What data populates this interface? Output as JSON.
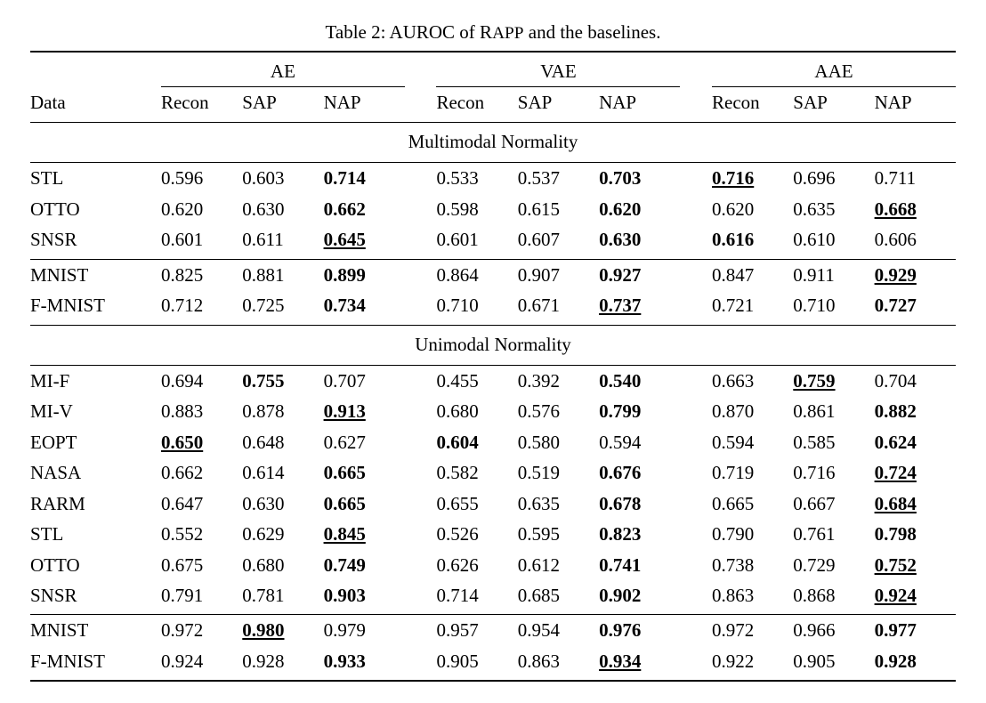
{
  "caption_prefix": "Table 2: AUROC of R",
  "caption_smallcaps": "APP",
  "caption_suffix": " and the baselines.",
  "groups": [
    "AE",
    "VAE",
    "AAE"
  ],
  "cols": [
    "Data",
    "Recon",
    "SAP",
    "NAP",
    "Recon",
    "SAP",
    "NAP",
    "Recon",
    "SAP",
    "NAP"
  ],
  "sections": [
    {
      "title": "Multimodal Normality",
      "blocks": [
        [
          {
            "label": "STL",
            "v": [
              {
                "t": "0.596"
              },
              {
                "t": "0.603"
              },
              {
                "t": "0.714",
                "b": true
              },
              {
                "t": "0.533"
              },
              {
                "t": "0.537"
              },
              {
                "t": "0.703",
                "b": true
              },
              {
                "t": "0.716",
                "b": true,
                "u": true
              },
              {
                "t": "0.696"
              },
              {
                "t": "0.711"
              }
            ]
          },
          {
            "label": "OTTO",
            "v": [
              {
                "t": "0.620"
              },
              {
                "t": "0.630"
              },
              {
                "t": "0.662",
                "b": true
              },
              {
                "t": "0.598"
              },
              {
                "t": "0.615"
              },
              {
                "t": "0.620",
                "b": true
              },
              {
                "t": "0.620"
              },
              {
                "t": "0.635"
              },
              {
                "t": "0.668",
                "b": true,
                "u": true
              }
            ]
          },
          {
            "label": "SNSR",
            "v": [
              {
                "t": "0.601"
              },
              {
                "t": "0.611"
              },
              {
                "t": "0.645",
                "b": true,
                "u": true
              },
              {
                "t": "0.601"
              },
              {
                "t": "0.607"
              },
              {
                "t": "0.630",
                "b": true
              },
              {
                "t": "0.616",
                "b": true
              },
              {
                "t": "0.610"
              },
              {
                "t": "0.606"
              }
            ]
          }
        ],
        [
          {
            "label": "MNIST",
            "v": [
              {
                "t": "0.825"
              },
              {
                "t": "0.881"
              },
              {
                "t": "0.899",
                "b": true
              },
              {
                "t": "0.864"
              },
              {
                "t": "0.907"
              },
              {
                "t": "0.927",
                "b": true
              },
              {
                "t": "0.847"
              },
              {
                "t": "0.911"
              },
              {
                "t": "0.929",
                "b": true,
                "u": true
              }
            ]
          },
          {
            "label": "F-MNIST",
            "v": [
              {
                "t": "0.712"
              },
              {
                "t": "0.725"
              },
              {
                "t": "0.734",
                "b": true
              },
              {
                "t": "0.710"
              },
              {
                "t": "0.671"
              },
              {
                "t": "0.737",
                "b": true,
                "u": true
              },
              {
                "t": "0.721"
              },
              {
                "t": "0.710"
              },
              {
                "t": "0.727",
                "b": true
              }
            ]
          }
        ]
      ]
    },
    {
      "title": "Unimodal Normality",
      "blocks": [
        [
          {
            "label": "MI-F",
            "v": [
              {
                "t": "0.694"
              },
              {
                "t": "0.755",
                "b": true
              },
              {
                "t": "0.707"
              },
              {
                "t": "0.455"
              },
              {
                "t": "0.392"
              },
              {
                "t": "0.540",
                "b": true
              },
              {
                "t": "0.663"
              },
              {
                "t": "0.759",
                "b": true,
                "u": true
              },
              {
                "t": "0.704"
              }
            ]
          },
          {
            "label": "MI-V",
            "v": [
              {
                "t": "0.883"
              },
              {
                "t": "0.878"
              },
              {
                "t": "0.913",
                "b": true,
                "u": true
              },
              {
                "t": "0.680"
              },
              {
                "t": "0.576"
              },
              {
                "t": "0.799",
                "b": true
              },
              {
                "t": "0.870"
              },
              {
                "t": "0.861"
              },
              {
                "t": "0.882",
                "b": true
              }
            ]
          },
          {
            "label": "EOPT",
            "v": [
              {
                "t": "0.650",
                "b": true,
                "u": true
              },
              {
                "t": "0.648"
              },
              {
                "t": "0.627"
              },
              {
                "t": "0.604",
                "b": true
              },
              {
                "t": "0.580"
              },
              {
                "t": "0.594"
              },
              {
                "t": "0.594"
              },
              {
                "t": "0.585"
              },
              {
                "t": "0.624",
                "b": true
              }
            ]
          },
          {
            "label": "NASA",
            "v": [
              {
                "t": "0.662"
              },
              {
                "t": "0.614"
              },
              {
                "t": "0.665",
                "b": true
              },
              {
                "t": "0.582"
              },
              {
                "t": "0.519"
              },
              {
                "t": "0.676",
                "b": true
              },
              {
                "t": "0.719"
              },
              {
                "t": "0.716"
              },
              {
                "t": "0.724",
                "b": true,
                "u": true
              }
            ]
          },
          {
            "label": "RARM",
            "v": [
              {
                "t": "0.647"
              },
              {
                "t": "0.630"
              },
              {
                "t": "0.665",
                "b": true
              },
              {
                "t": "0.655"
              },
              {
                "t": "0.635"
              },
              {
                "t": "0.678",
                "b": true
              },
              {
                "t": "0.665"
              },
              {
                "t": "0.667"
              },
              {
                "t": "0.684",
                "b": true,
                "u": true
              }
            ]
          },
          {
            "label": "STL",
            "v": [
              {
                "t": "0.552"
              },
              {
                "t": "0.629"
              },
              {
                "t": "0.845",
                "b": true,
                "u": true
              },
              {
                "t": "0.526"
              },
              {
                "t": "0.595"
              },
              {
                "t": "0.823",
                "b": true
              },
              {
                "t": "0.790"
              },
              {
                "t": "0.761"
              },
              {
                "t": "0.798",
                "b": true
              }
            ]
          },
          {
            "label": "OTTO",
            "v": [
              {
                "t": "0.675"
              },
              {
                "t": "0.680"
              },
              {
                "t": "0.749",
                "b": true
              },
              {
                "t": "0.626"
              },
              {
                "t": "0.612"
              },
              {
                "t": "0.741",
                "b": true
              },
              {
                "t": "0.738"
              },
              {
                "t": "0.729"
              },
              {
                "t": "0.752",
                "b": true,
                "u": true
              }
            ]
          },
          {
            "label": "SNSR",
            "v": [
              {
                "t": "0.791"
              },
              {
                "t": "0.781"
              },
              {
                "t": "0.903",
                "b": true
              },
              {
                "t": "0.714"
              },
              {
                "t": "0.685"
              },
              {
                "t": "0.902",
                "b": true
              },
              {
                "t": "0.863"
              },
              {
                "t": "0.868"
              },
              {
                "t": "0.924",
                "b": true,
                "u": true
              }
            ]
          }
        ],
        [
          {
            "label": "MNIST",
            "v": [
              {
                "t": "0.972"
              },
              {
                "t": "0.980",
                "b": true,
                "u": true
              },
              {
                "t": "0.979"
              },
              {
                "t": "0.957"
              },
              {
                "t": "0.954"
              },
              {
                "t": "0.976",
                "b": true
              },
              {
                "t": "0.972"
              },
              {
                "t": "0.966"
              },
              {
                "t": "0.977",
                "b": true
              }
            ]
          },
          {
            "label": "F-MNIST",
            "v": [
              {
                "t": "0.924"
              },
              {
                "t": "0.928"
              },
              {
                "t": "0.933",
                "b": true
              },
              {
                "t": "0.905"
              },
              {
                "t": "0.863"
              },
              {
                "t": "0.934",
                "b": true,
                "u": true
              },
              {
                "t": "0.922"
              },
              {
                "t": "0.905"
              },
              {
                "t": "0.928",
                "b": true
              }
            ]
          }
        ]
      ]
    }
  ]
}
